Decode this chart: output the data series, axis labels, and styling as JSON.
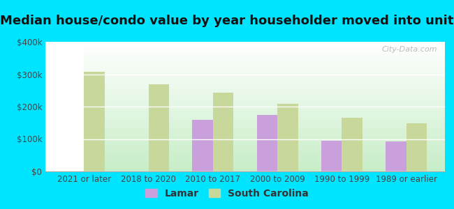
{
  "title": "Median house/condo value by year householder moved into unit",
  "categories": [
    "2021 or later",
    "2018 to 2020",
    "2010 to 2017",
    "2000 to 2009",
    "1990 to 1999",
    "1989 or earlier"
  ],
  "lamar_values": [
    null,
    null,
    160000,
    175000,
    95000,
    92000
  ],
  "sc_values": [
    308000,
    268000,
    242000,
    208000,
    165000,
    148000
  ],
  "lamar_color": "#c9a0dc",
  "sc_color": "#c8d89a",
  "background_outer": "#00e5ff",
  "ylim": [
    0,
    400000
  ],
  "yticks": [
    0,
    100000,
    200000,
    300000,
    400000
  ],
  "ytick_labels": [
    "$0",
    "$100k",
    "$200k",
    "$300k",
    "$400k"
  ],
  "bar_width": 0.32,
  "legend_lamar": "Lamar",
  "legend_sc": "South Carolina",
  "watermark": "City-Data.com",
  "title_fontsize": 13,
  "tick_fontsize": 8.5,
  "legend_fontsize": 10
}
